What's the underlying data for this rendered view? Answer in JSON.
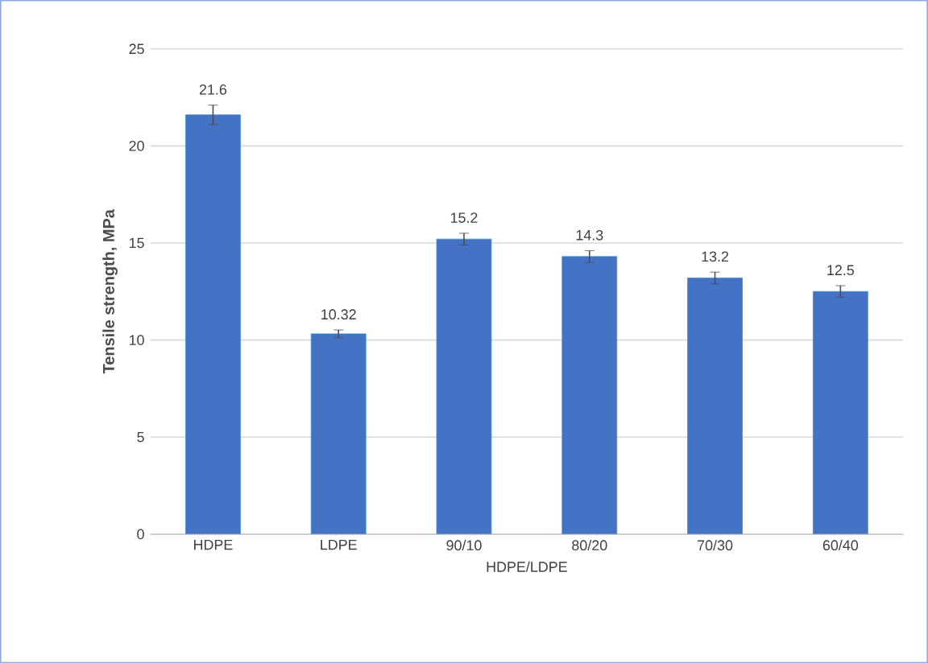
{
  "chart_data": {
    "type": "bar",
    "xlabel": "HDPE/LDPE",
    "ylabel": "Tensile strength, MPa",
    "categories": [
      "HDPE",
      "LDPE",
      "90/10",
      "80/20",
      "70/30",
      "60/40"
    ],
    "values": [
      21.6,
      10.32,
      15.2,
      14.3,
      13.2,
      12.5
    ],
    "errors": [
      0.5,
      0.2,
      0.3,
      0.3,
      0.3,
      0.3
    ],
    "color": "#4472c4",
    "ylim": [
      0,
      25
    ],
    "yticks": [
      0,
      5,
      10,
      15,
      20,
      25
    ],
    "grid": "y",
    "data_labels": true
  }
}
